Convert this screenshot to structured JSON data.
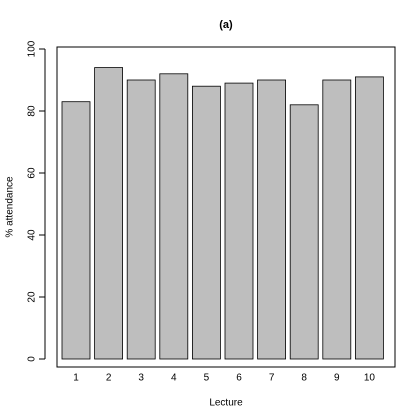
{
  "chart_data": {
    "type": "bar",
    "title": "(a)",
    "x_label": "Lecture",
    "y_label": "% attendance",
    "categories": [
      "1",
      "2",
      "3",
      "4",
      "5",
      "6",
      "7",
      "8",
      "9",
      "10"
    ],
    "values": [
      83,
      94,
      90,
      92,
      88,
      89,
      90,
      82,
      90,
      91
    ],
    "color": "#bebebe",
    "ylim": [
      0,
      100
    ],
    "yticks": [
      0,
      20,
      40,
      60,
      80,
      100
    ],
    "grid": false
  }
}
